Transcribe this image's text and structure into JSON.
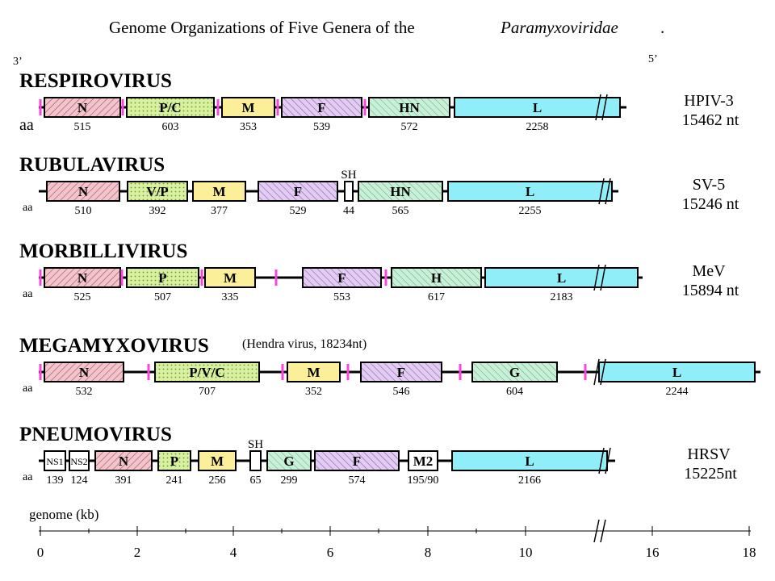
{
  "title": {
    "main": "Genome Organizations of Five Genera of the",
    "italic": "Paramyxoviridae",
    "period": "."
  },
  "end3": "3’",
  "end5": "5’",
  "aa_label": "aa",
  "colors": {
    "N": "#f2c4cc",
    "P": "#d8f0a0",
    "M": "#fbef9a",
    "F": "#e2ccf2",
    "HN": "#c8f0d8",
    "L": "#90eef8",
    "line": "#000000",
    "marker": "#ff44dd",
    "white": "#ffffff"
  },
  "genera": [
    {
      "name": "RESPIROVIRUS",
      "note": "",
      "virus": "HPIV-3",
      "length": "15462 nt",
      "genes": [
        {
          "label": "N",
          "aa": "515",
          "color": "N"
        },
        {
          "label": "P/C",
          "aa": "603",
          "color": "P"
        },
        {
          "label": "M",
          "aa": "353",
          "color": "M"
        },
        {
          "label": "F",
          "aa": "539",
          "color": "F"
        },
        {
          "label": "HN",
          "aa": "572",
          "color": "HN"
        },
        {
          "label": "L",
          "aa": "2258",
          "color": "L"
        }
      ]
    },
    {
      "name": "RUBULAVIRUS",
      "note": "",
      "virus": "SV-5",
      "length": "15246 nt",
      "genes": [
        {
          "label": "N",
          "aa": "510",
          "color": "N"
        },
        {
          "label": "V/P",
          "aa": "392",
          "color": "P"
        },
        {
          "label": "M",
          "aa": "377",
          "color": "M"
        },
        {
          "label": "F",
          "aa": "529",
          "color": "F"
        },
        {
          "label": "SH",
          "aa": "44",
          "color": "white"
        },
        {
          "label": "HN",
          "aa": "565",
          "color": "HN"
        },
        {
          "label": "L",
          "aa": "2255",
          "color": "L"
        }
      ]
    },
    {
      "name": "MORBILLIVIRUS",
      "note": "",
      "virus": "MeV",
      "length": "15894 nt",
      "genes": [
        {
          "label": "N",
          "aa": "525",
          "color": "N"
        },
        {
          "label": "P",
          "aa": "507",
          "color": "P"
        },
        {
          "label": "M",
          "aa": "335",
          "color": "M"
        },
        {
          "label": "F",
          "aa": "553",
          "color": "F"
        },
        {
          "label": "H",
          "aa": "617",
          "color": "HN"
        },
        {
          "label": "L",
          "aa": "2183",
          "color": "L"
        }
      ]
    },
    {
      "name": "MEGAMYXOVIRUS",
      "note": "(Hendra virus, 18234nt)",
      "virus": "",
      "length": "",
      "genes": [
        {
          "label": "N",
          "aa": "532",
          "color": "N"
        },
        {
          "label": "P/V/C",
          "aa": "707",
          "color": "P"
        },
        {
          "label": "M",
          "aa": "352",
          "color": "M"
        },
        {
          "label": "F",
          "aa": "546",
          "color": "F"
        },
        {
          "label": "G",
          "aa": "604",
          "color": "HN"
        },
        {
          "label": "L",
          "aa": "2244",
          "color": "L"
        }
      ]
    },
    {
      "name": "PNEUMOVIRUS",
      "note": "",
      "virus": "HRSV",
      "length": "15225nt",
      "genes": [
        {
          "label": "NS1",
          "aa": "139",
          "color": "white"
        },
        {
          "label": "NS2",
          "aa": "124",
          "color": "white"
        },
        {
          "label": "N",
          "aa": "391",
          "color": "N"
        },
        {
          "label": "P",
          "aa": "241",
          "color": "P"
        },
        {
          "label": "M",
          "aa": "256",
          "color": "M"
        },
        {
          "label": "SH",
          "aa": "65",
          "color": "white"
        },
        {
          "label": "G",
          "aa": "299",
          "color": "HN"
        },
        {
          "label": "F",
          "aa": "574",
          "color": "F"
        },
        {
          "label": "M2",
          "aa": "195/90",
          "color": "white"
        },
        {
          "label": "L",
          "aa": "2166",
          "color": "L"
        }
      ]
    }
  ],
  "axis": {
    "label": "genome (kb)",
    "ticks": [
      "0",
      "2",
      "4",
      "6",
      "8",
      "10",
      "16",
      "18"
    ]
  }
}
